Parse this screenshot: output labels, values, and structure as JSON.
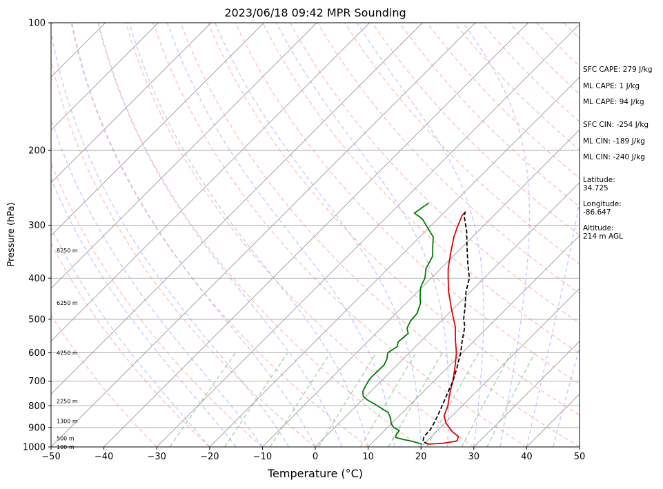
{
  "chart_data": {
    "type": "line",
    "title": "2023/06/18 09:42 MPR Sounding",
    "xlabel": "Temperature (°C)",
    "ylabel": "Pressure (hPa)",
    "xlim": [
      -50,
      50
    ],
    "ylim": [
      1000,
      100
    ],
    "y_scale": "log",
    "x_ticks": [
      "−50",
      "−40",
      "−30",
      "−20",
      "−10",
      "0",
      "10",
      "20",
      "30",
      "40",
      "50"
    ],
    "y_ticks": [
      "100",
      "200",
      "300",
      "400",
      "500",
      "600",
      "700",
      "800",
      "900",
      "1000"
    ],
    "skew": "skew-T log-P",
    "grid": true,
    "series": [
      {
        "kind": "temperature",
        "color": "#e00000",
        "points": [
          [
            20.8,
            985
          ],
          [
            23.5,
            980
          ],
          [
            25.7,
            968
          ],
          [
            25.1,
            945
          ],
          [
            23.0,
            920
          ],
          [
            20.3,
            880
          ],
          [
            18.5,
            845
          ],
          [
            17.3,
            800
          ],
          [
            15.2,
            745
          ],
          [
            13.6,
            700
          ],
          [
            11.4,
            650
          ],
          [
            8.9,
            600
          ],
          [
            6.3,
            560
          ],
          [
            3.7,
            520
          ],
          [
            2.0,
            500
          ],
          [
            -0.6,
            470
          ],
          [
            -4.2,
            430
          ],
          [
            -6.8,
            400
          ],
          [
            -8.6,
            380
          ],
          [
            -11.0,
            350
          ],
          [
            -13.5,
            320
          ],
          [
            -14.6,
            305
          ],
          [
            -16.0,
            285
          ],
          [
            -16.1,
            279
          ]
        ]
      },
      {
        "kind": "dewpoint",
        "color": "#007a00",
        "points": [
          [
            19.7,
            985
          ],
          [
            17.3,
            970
          ],
          [
            15.2,
            960
          ],
          [
            13.4,
            950
          ],
          [
            13.0,
            935
          ],
          [
            12.8,
            915
          ],
          [
            11.2,
            900
          ],
          [
            9.9,
            880
          ],
          [
            8.8,
            855
          ],
          [
            7.3,
            830
          ],
          [
            4.0,
            800
          ],
          [
            1.0,
            775
          ],
          [
            -0.5,
            760
          ],
          [
            -1.5,
            740
          ],
          [
            -2.0,
            720
          ],
          [
            -2.6,
            690
          ],
          [
            -2.5,
            640
          ],
          [
            -3.1,
            620
          ],
          [
            -4.1,
            600
          ],
          [
            -3.5,
            580
          ],
          [
            -4.2,
            565
          ],
          [
            -3.9,
            540
          ],
          [
            -5.1,
            525
          ],
          [
            -5.8,
            505
          ],
          [
            -6.0,
            485
          ],
          [
            -7.2,
            460
          ],
          [
            -8.8,
            440
          ],
          [
            -10.3,
            420
          ],
          [
            -11.2,
            400
          ],
          [
            -12.8,
            380
          ],
          [
            -13.9,
            355
          ],
          [
            -15.9,
            335
          ],
          [
            -17.4,
            320
          ],
          [
            -20.1,
            305
          ],
          [
            -22.9,
            290
          ],
          [
            -25.5,
            281
          ],
          [
            -25.1,
            273
          ],
          [
            -24.7,
            266
          ]
        ]
      },
      {
        "kind": "parcel",
        "color": "#000000",
        "dashed": true,
        "points": [
          [
            20.8,
            985
          ],
          [
            19.3,
            970
          ],
          [
            18.6,
            945
          ],
          [
            18.5,
            910
          ],
          [
            17.8,
            870
          ],
          [
            16.7,
            820
          ],
          [
            15.2,
            760
          ],
          [
            13.6,
            700
          ],
          [
            11.8,
            650
          ],
          [
            9.7,
            600
          ],
          [
            7.6,
            560
          ],
          [
            5.5,
            520
          ],
          [
            3.9,
            500
          ],
          [
            2.0,
            470
          ],
          [
            -0.9,
            430
          ],
          [
            -2.8,
            400
          ],
          [
            -5.8,
            370
          ],
          [
            -8.9,
            340
          ],
          [
            -12.2,
            310
          ],
          [
            -15.6,
            285
          ],
          [
            -16.1,
            279
          ]
        ]
      }
    ],
    "height_labels": [
      {
        "text": "100 m",
        "p": 1000
      },
      {
        "text": "500 m",
        "p": 955
      },
      {
        "text": "1300 m",
        "p": 869
      },
      {
        "text": "2250 m",
        "p": 780
      },
      {
        "text": "4250 m",
        "p": 600
      },
      {
        "text": "6250 m",
        "p": 457
      },
      {
        "text": "8250 m",
        "p": 344
      }
    ],
    "guide_colors": {
      "isotherm": "#9a9a9a",
      "isobar": "#a0a0a0",
      "dry_adiabat": "#ff9a9a",
      "moist_adiabat": "#a6a6ff",
      "mixing_ratio": "#7fc47f"
    }
  },
  "side_panel": {
    "sfc_cape": "SFC CAPE: 279 J/kg",
    "ml_cape_1": "ML CAPE: 1 J/kg",
    "ml_cape_2": "ML CAPE: 94 J/kg",
    "sfc_cin": "SFC CIN: -254 J/kg",
    "ml_cin_1": "ML CIN: -189 J/kg",
    "ml_cin_2": "ML CIN: -240 J/kg",
    "latitude_label": "Latitude:",
    "latitude_value": "34.725",
    "longitude_label": "Longitude:",
    "longitude_value": "-86.647",
    "altitude_label": "Altitude:",
    "altitude_value": "214 m AGL"
  }
}
